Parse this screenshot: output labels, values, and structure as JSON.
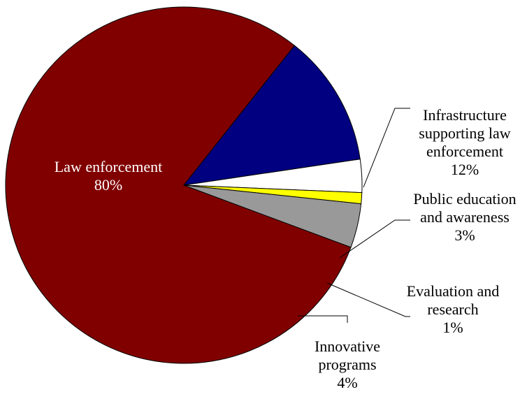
{
  "chart_data": {
    "type": "pie",
    "title": "",
    "slices": [
      {
        "label_lines": [
          "Law enforcement"
        ],
        "percent_label": "80%",
        "value": 80,
        "color": "#800000",
        "label_color": "#ffffff"
      },
      {
        "label_lines": [
          "Infrastructure",
          "supporting law",
          "enforcement"
        ],
        "percent_label": "12%",
        "value": 12,
        "color": "#000080",
        "label_color": "#000000"
      },
      {
        "label_lines": [
          "Public education",
          "and awareness"
        ],
        "percent_label": "3%",
        "value": 3,
        "color": "#ffffff",
        "label_color": "#000000"
      },
      {
        "label_lines": [
          "Evaluation and",
          "research"
        ],
        "percent_label": "1%",
        "value": 1,
        "color": "#ffff00",
        "label_color": "#000000"
      },
      {
        "label_lines": [
          "Innovative",
          "programs"
        ],
        "percent_label": "4%",
        "value": 4,
        "color": "#999999",
        "label_color": "#000000"
      }
    ],
    "legend": "none"
  }
}
